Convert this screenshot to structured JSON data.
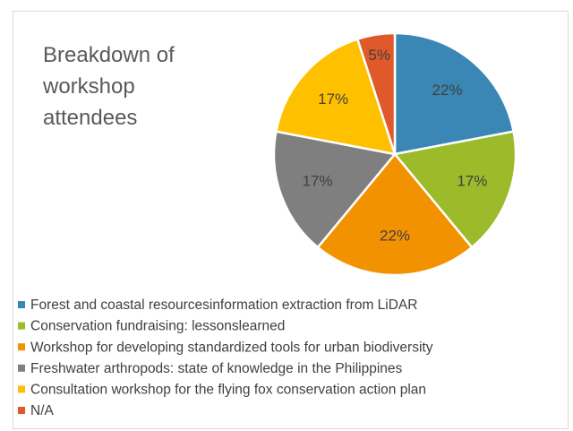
{
  "chart_data": {
    "type": "pie",
    "title": "Breakdown of workshop attendees",
    "categories": [
      "Forest and coastal resourcesinformation extraction from LiDAR",
      "Conservation fundraising: lessonslearned",
      "Workshop for developing standardized tools for urban biodiversity",
      "Freshwater arthropods: state of knowledge in the Philippines",
      "Consultation workshop for the flying fox conservation action plan",
      "N/A"
    ],
    "values": [
      22,
      17,
      22,
      17,
      17,
      5
    ],
    "value_labels": [
      "22%",
      "17%",
      "22%",
      "17%",
      "17%",
      "5%"
    ],
    "colors": [
      "#3a87b5",
      "#9bbb2a",
      "#f39200",
      "#7f7f7f",
      "#ffc000",
      "#e0592a"
    ],
    "legend": "bottom"
  }
}
